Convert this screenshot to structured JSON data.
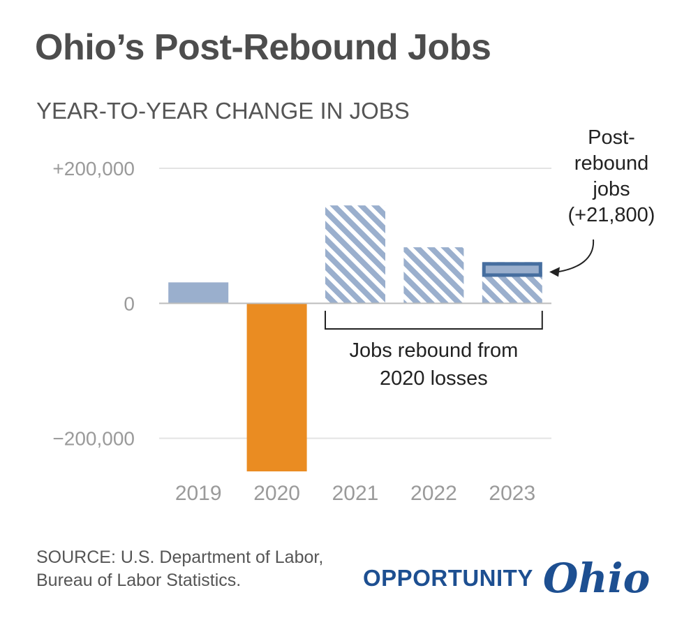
{
  "title": "Ohio’s Post-Rebound Jobs",
  "subtitle": "YEAR-TO-YEAR CHANGE IN JOBS",
  "source": "SOURCE: U.S. Department of Labor, Bureau of Labor Statistics.",
  "brand": {
    "word": "OPPORTUNITY",
    "script": "Ohio"
  },
  "colors": {
    "positive": "#9aafcd",
    "negative": "#ea8c22",
    "rebound_stripe": "#9aafcd",
    "post_rebound": "#466e9f",
    "grid": "#e3e3e3",
    "axis": "#bdbdbd"
  },
  "chart_data": {
    "type": "bar",
    "categories": [
      "2019",
      "2020",
      "2021",
      "2022",
      "2023"
    ],
    "values": [
      31000,
      -249000,
      145000,
      83000,
      61000
    ],
    "ylim": [
      -249000,
      200000
    ],
    "yticks": [
      200000,
      0,
      -200000
    ],
    "ytick_labels": [
      "+200,000",
      "0",
      "−200,000"
    ],
    "grid": true,
    "rebound_categories": [
      "2021",
      "2022",
      "2023"
    ],
    "post_rebound": {
      "category": "2023",
      "value": 21800
    },
    "annotations": {
      "rebound_bracket": [
        "Jobs rebound from",
        "2020 losses"
      ],
      "post_rebound": [
        "Post-",
        "rebound",
        "jobs",
        "(+21,800)"
      ]
    }
  }
}
